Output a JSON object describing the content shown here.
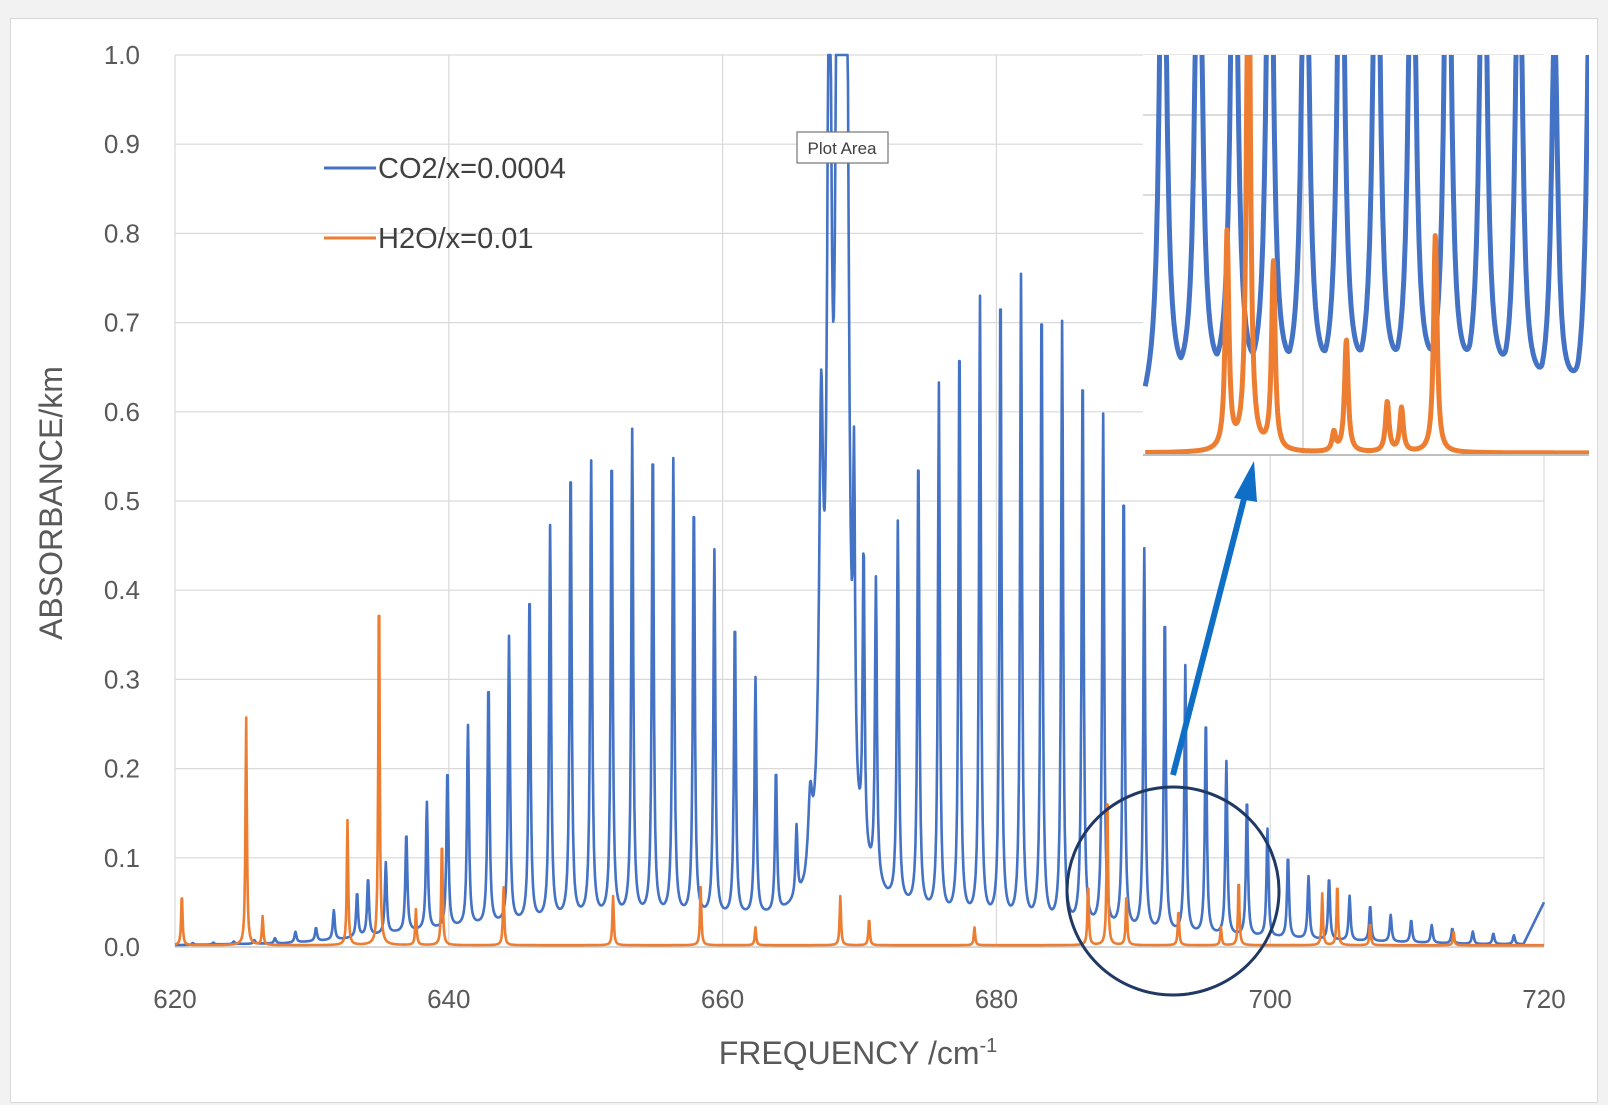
{
  "chart_data": {
    "type": "line",
    "xlabel": "FREQUENCY /cm",
    "xlabel_superscript": "-1",
    "ylabel": "ABSORBANCE/km",
    "xlim": [
      620,
      720
    ],
    "ylim": [
      0,
      1.0
    ],
    "x_ticks": [
      "620",
      "640",
      "660",
      "680",
      "700",
      "720"
    ],
    "y_ticks": [
      "0.0",
      "0.1",
      "0.2",
      "0.3",
      "0.4",
      "0.5",
      "0.6",
      "0.7",
      "0.8",
      "0.9",
      "1.0"
    ],
    "grid": true,
    "legend_position": "top-left",
    "series": [
      {
        "name": "CO2/x=0.0004",
        "color": "#4472c4",
        "baseline": [
          [
            620,
            0.002
          ],
          [
            628,
            0.004
          ],
          [
            632,
            0.008
          ],
          [
            636,
            0.015
          ],
          [
            640,
            0.02
          ],
          [
            645,
            0.025
          ],
          [
            650,
            0.03
          ],
          [
            655,
            0.032
          ],
          [
            660,
            0.03
          ],
          [
            664,
            0.03
          ],
          [
            666,
            0.04
          ],
          [
            668,
            0.1
          ],
          [
            670,
            0.07
          ],
          [
            672,
            0.045
          ],
          [
            676,
            0.03
          ],
          [
            680,
            0.025
          ],
          [
            685,
            0.02
          ],
          [
            690,
            0.015
          ],
          [
            695,
            0.012
          ],
          [
            700,
            0.01
          ],
          [
            705,
            0.007
          ],
          [
            710,
            0.005
          ],
          [
            715,
            0.003
          ],
          [
            718.5,
            0.003
          ],
          [
            720,
            0.05
          ]
        ],
        "lines": [
          [
            621.3,
            0.002
          ],
          [
            622.8,
            0.002
          ],
          [
            624.3,
            0.003
          ],
          [
            625.8,
            0.004
          ],
          [
            627.3,
            0.006
          ],
          [
            628.8,
            0.012
          ],
          [
            630.3,
            0.015
          ],
          [
            631.6,
            0.033
          ],
          [
            633.3,
            0.05
          ],
          [
            634.1,
            0.065
          ],
          [
            635.4,
            0.08
          ],
          [
            636.9,
            0.112
          ],
          [
            638.4,
            0.143
          ],
          [
            639.9,
            0.18
          ],
          [
            641.4,
            0.225
          ],
          [
            642.9,
            0.274
          ],
          [
            644.4,
            0.321
          ],
          [
            645.9,
            0.374
          ],
          [
            647.4,
            0.441
          ],
          [
            648.9,
            0.514
          ],
          [
            650.4,
            0.51
          ],
          [
            651.9,
            0.525
          ],
          [
            653.4,
            0.544
          ],
          [
            654.9,
            0.531
          ],
          [
            656.4,
            0.511
          ],
          [
            657.9,
            0.47
          ],
          [
            659.4,
            0.41
          ],
          [
            660.9,
            0.335
          ],
          [
            662.4,
            0.266
          ],
          [
            663.9,
            0.162
          ],
          [
            665.4,
            0.08
          ],
          [
            669.6,
            0.35
          ],
          [
            670.3,
            0.34
          ],
          [
            671.2,
            0.337
          ],
          [
            672.8,
            0.425
          ],
          [
            674.3,
            0.516
          ],
          [
            675.8,
            0.594
          ],
          [
            677.3,
            0.655
          ],
          [
            678.8,
            0.696
          ],
          [
            680.3,
            0.72
          ],
          [
            681.8,
            0.724
          ],
          [
            683.3,
            0.706
          ],
          [
            684.8,
            0.675
          ],
          [
            686.3,
            0.632
          ],
          [
            687.8,
            0.575
          ],
          [
            689.3,
            0.5
          ],
          [
            690.8,
            0.428
          ],
          [
            692.3,
            0.36
          ],
          [
            693.8,
            0.3
          ],
          [
            695.3,
            0.244
          ],
          [
            696.8,
            0.195
          ],
          [
            698.3,
            0.155
          ],
          [
            699.8,
            0.121
          ],
          [
            701.3,
            0.092
          ],
          [
            702.8,
            0.07
          ],
          [
            704.3,
            0.07
          ],
          [
            705.8,
            0.05
          ],
          [
            707.3,
            0.04
          ],
          [
            708.8,
            0.03
          ],
          [
            710.3,
            0.025
          ],
          [
            711.8,
            0.02
          ],
          [
            713.3,
            0.017
          ],
          [
            714.8,
            0.014
          ],
          [
            716.3,
            0.012
          ],
          [
            717.8,
            0.01
          ]
        ],
        "central_peak": [
          [
            666.4,
            0.08
          ],
          [
            667.2,
            0.45
          ],
          [
            667.8,
            1.0
          ],
          [
            668.4,
            1.0
          ],
          [
            668.8,
            0.9
          ],
          [
            669.1,
            0.7
          ]
        ]
      },
      {
        "name": "H2O/x=0.01",
        "color": "#ed7d31",
        "lines": [
          [
            620.5,
            0.058
          ],
          [
            625.2,
            0.255
          ],
          [
            626.4,
            0.032
          ],
          [
            632.6,
            0.14
          ],
          [
            634.9,
            0.41
          ],
          [
            637.6,
            0.04
          ],
          [
            639.5,
            0.12
          ],
          [
            644.0,
            0.065
          ],
          [
            652.0,
            0.055
          ],
          [
            658.4,
            0.065
          ],
          [
            662.4,
            0.02
          ],
          [
            668.6,
            0.055
          ],
          [
            670.7,
            0.03
          ],
          [
            678.4,
            0.02
          ],
          [
            686.7,
            0.07
          ],
          [
            688.1,
            0.175
          ],
          [
            689.5,
            0.058
          ],
          [
            693.3,
            0.04
          ],
          [
            696.4,
            0.02
          ],
          [
            697.7,
            0.075
          ],
          [
            703.8,
            0.058
          ],
          [
            704.9,
            0.07
          ],
          [
            707.3,
            0.025
          ],
          [
            713.4,
            0.015
          ]
        ]
      }
    ],
    "inset": {
      "y_cut": 0.7,
      "co2_lines": [
        [
          0,
          1
        ],
        [
          2,
          1
        ],
        [
          4,
          1
        ],
        [
          6,
          1
        ],
        [
          8,
          1
        ],
        [
          10,
          1
        ],
        [
          12,
          1
        ],
        [
          14,
          1
        ],
        [
          16,
          1
        ],
        [
          18,
          1
        ],
        [
          20,
          0.88
        ],
        [
          22,
          0.6
        ],
        [
          24,
          0.75
        ]
      ],
      "h2o_lines": [
        [
          3.6,
          0.35
        ],
        [
          4.8,
          0.95
        ],
        [
          6.2,
          0.3
        ],
        [
          9.6,
          0.03
        ],
        [
          10.3,
          0.18
        ],
        [
          12.6,
          0.08
        ],
        [
          13.4,
          0.07
        ],
        [
          15.3,
          0.35
        ]
      ]
    },
    "annotations": {
      "tooltip": "Plot Area"
    }
  }
}
